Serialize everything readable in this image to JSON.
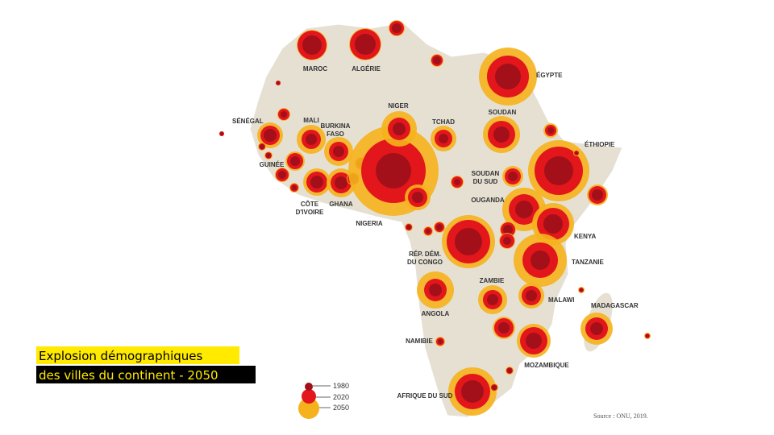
{
  "map": {
    "labels": [
      {
        "lines": [
          "MAROC"
        ]
      },
      {
        "lines": [
          "ALGÉRIE"
        ]
      },
      {
        "lines": [
          "ÉGYPTE"
        ]
      },
      {
        "lines": [
          "SÉNÉGAL"
        ]
      },
      {
        "lines": [
          "MALI"
        ]
      },
      {
        "lines": [
          "BURKINA",
          "FASO"
        ]
      },
      {
        "lines": [
          "NIGER"
        ]
      },
      {
        "lines": [
          "TCHAD"
        ]
      },
      {
        "lines": [
          "SOUDAN"
        ]
      },
      {
        "lines": [
          "ÉTHIOPIE"
        ]
      },
      {
        "lines": [
          "GUINÉE"
        ]
      },
      {
        "lines": [
          "CÔTE",
          "D'IVOIRE"
        ]
      },
      {
        "lines": [
          "GHANA"
        ]
      },
      {
        "lines": [
          "NIGERIA"
        ]
      },
      {
        "lines": [
          "SOUDAN",
          "DU SUD"
        ]
      },
      {
        "lines": [
          "OUGANDA"
        ]
      },
      {
        "lines": [
          "KENYA"
        ]
      },
      {
        "lines": [
          "RÉP. DÉM.",
          "DU CONGO"
        ]
      },
      {
        "lines": [
          "TANZANIE"
        ]
      },
      {
        "lines": [
          "ZAMBIE"
        ]
      },
      {
        "lines": [
          "ANGOLA"
        ]
      },
      {
        "lines": [
          "MALAWI"
        ]
      },
      {
        "lines": [
          "MADAGASCAR"
        ]
      },
      {
        "lines": [
          "NAMIBIE"
        ]
      },
      {
        "lines": [
          "MOZAMBIQUE"
        ]
      },
      {
        "lines": [
          "AFRIQUE DU SUD"
        ]
      }
    ]
  },
  "legend": {
    "items": [
      "1980",
      "2020",
      "2050"
    ]
  },
  "caption": {
    "lines": [
      "Explosion démographiques",
      "des villes du continent - 2050"
    ]
  },
  "source": "Source : ONU, 2019."
}
